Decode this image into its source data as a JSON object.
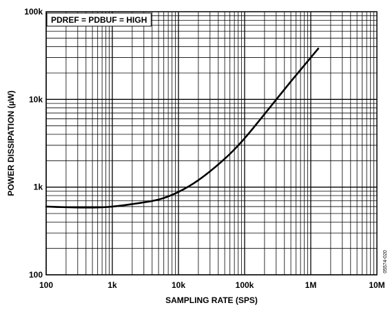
{
  "chart_data": {
    "type": "line",
    "title": "",
    "xlabel": "SAMPLING RATE (SPS)",
    "ylabel": "POWER DISSIPATION (µW)",
    "x_scale": "log",
    "y_scale": "log",
    "xlim": [
      100,
      10000000
    ],
    "ylim": [
      100,
      100000
    ],
    "x_ticks": [
      "100",
      "1k",
      "10k",
      "100k",
      "1M",
      "10M"
    ],
    "y_ticks": [
      "100",
      "1k",
      "10k",
      "100k"
    ],
    "grid": true,
    "annotation": "PDREF = PDBUF = HIGH",
    "figure_id": "05574-020",
    "series": [
      {
        "color": "#000000",
        "x": [
          100,
          200,
          500,
          1000,
          2000,
          5000,
          10000,
          20000,
          50000,
          100000,
          200000,
          500000,
          1000000,
          1300000
        ],
        "y": [
          600,
          590,
          585,
          600,
          640,
          720,
          880,
          1200,
          2100,
          3600,
          6800,
          16000,
          30000,
          38000
        ]
      }
    ]
  }
}
